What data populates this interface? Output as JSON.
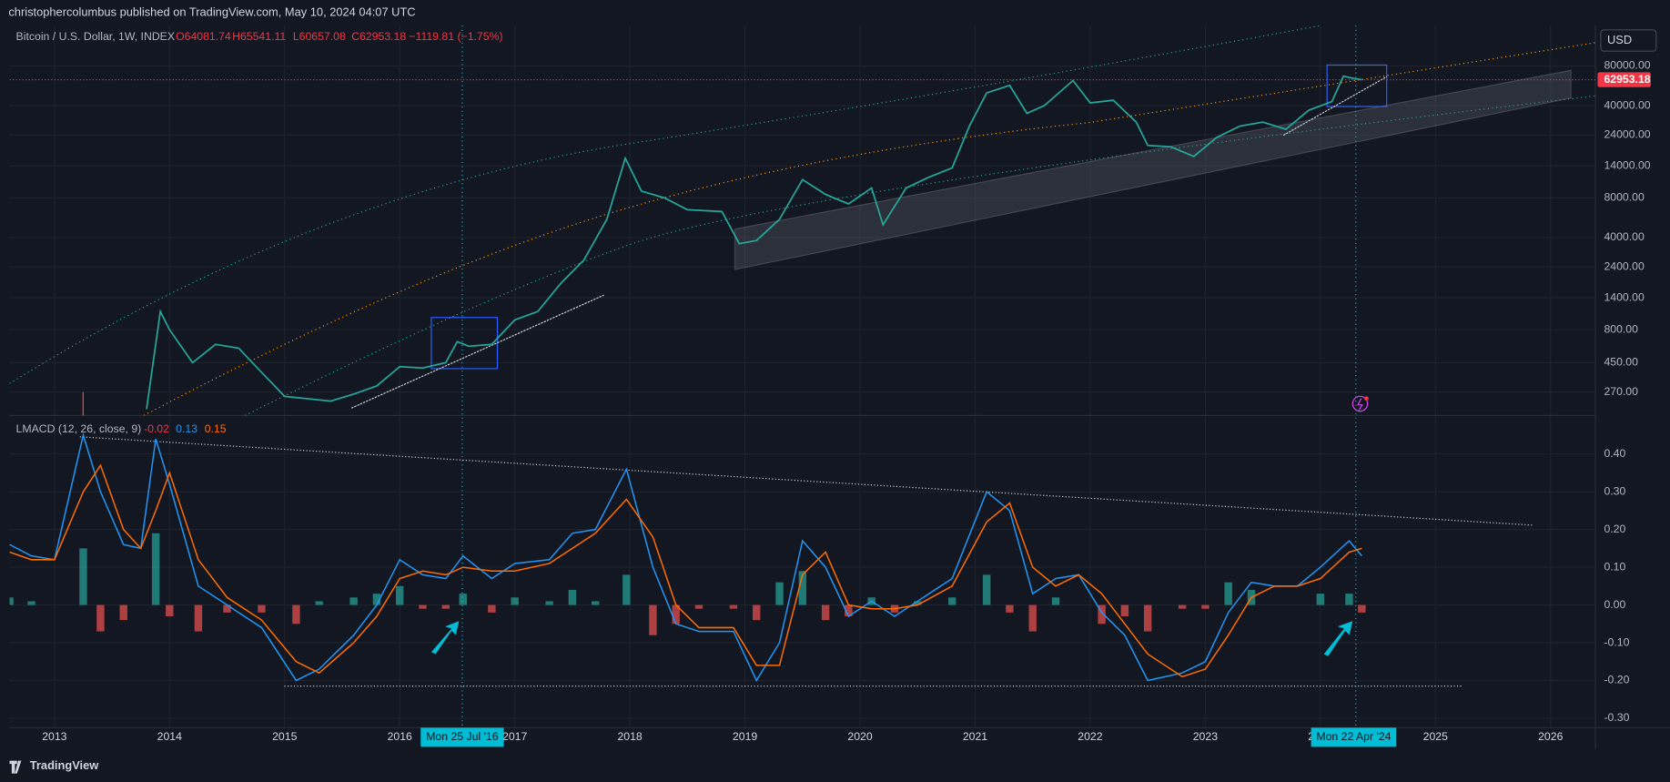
{
  "header": {
    "title": "christophercolumbus published on TradingView.com, May 10, 2024 04:07 UTC"
  },
  "footer": {
    "brand": "TradingView"
  },
  "currency": "USD",
  "crosshair_labels": [
    "Mon 25 Jul '16",
    "Mon 22 Apr '24"
  ],
  "chart_data": [
    {
      "type": "line",
      "legend": [
        "Bitcoin / U.S. Dollar, 1W, INDEX",
        "O64081.74",
        "H65541.11",
        "L60657.08",
        "C62953.18",
        "−1119.81 (−1.75%)"
      ],
      "log_scale": true,
      "color": "#26a69a",
      "last_price": 62953.18,
      "last_price_color": "#f23645",
      "x": [
        2013.8,
        2013.92,
        2014.0,
        2014.2,
        2014.4,
        2014.6,
        2014.8,
        2015.0,
        2015.2,
        2015.4,
        2015.6,
        2015.8,
        2016.0,
        2016.2,
        2016.4,
        2016.5,
        2016.6,
        2016.8,
        2017.0,
        2017.2,
        2017.4,
        2017.6,
        2017.8,
        2017.96,
        2018.1,
        2018.3,
        2018.5,
        2018.8,
        2018.95,
        2019.1,
        2019.3,
        2019.5,
        2019.7,
        2019.9,
        2020.1,
        2020.2,
        2020.4,
        2020.6,
        2020.8,
        2020.95,
        2021.1,
        2021.3,
        2021.45,
        2021.6,
        2021.85,
        2022.0,
        2022.2,
        2022.4,
        2022.5,
        2022.7,
        2022.9,
        2023.1,
        2023.3,
        2023.5,
        2023.7,
        2023.9,
        2024.1,
        2024.2,
        2024.3,
        2024.36
      ],
      "series": [
        {
          "color": "#26a69a",
          "values": [
            200,
            1100,
            800,
            450,
            620,
            580,
            380,
            250,
            240,
            230,
            260,
            300,
            420,
            410,
            450,
            650,
            600,
            620,
            950,
            1100,
            1800,
            2700,
            5500,
            16000,
            9000,
            8000,
            6500,
            6300,
            3600,
            3800,
            5500,
            11000,
            8500,
            7200,
            9500,
            5000,
            9500,
            11500,
            13500,
            28000,
            50000,
            57000,
            35000,
            40000,
            62000,
            42000,
            44000,
            30000,
            20000,
            19500,
            16500,
            23000,
            28000,
            30000,
            26500,
            37000,
            43000,
            67000,
            64000,
            62953.18
          ]
        }
      ],
      "xlim": [
        2012.61,
        2026.39
      ],
      "ylim": [
        179,
        162000
      ],
      "yticks": [
        {
          "value": 80000,
          "label": "80000.00"
        },
        {
          "value": 40000,
          "label": "40000.00"
        },
        {
          "value": 24000,
          "label": "24000.00"
        },
        {
          "value": 14000,
          "label": "14000.00"
        },
        {
          "value": 8000,
          "label": "8000.00"
        },
        {
          "value": 4000,
          "label": "4000.00"
        },
        {
          "value": 2400,
          "label": "2400.00"
        },
        {
          "value": 1400,
          "label": "1400.00"
        },
        {
          "value": 800,
          "label": "800.00"
        },
        {
          "value": 450,
          "label": "450.00"
        },
        {
          "value": 270,
          "label": "270.00"
        }
      ],
      "grid": true
    },
    {
      "type": "line",
      "legend": [
        "LMACD (12, 26, close, 9)",
        "-0.02",
        "0.13",
        "0.15"
      ],
      "x": [
        2012.61,
        2012.8,
        2013.0,
        2013.25,
        2013.4,
        2013.6,
        2013.75,
        2013.88,
        2014.0,
        2014.25,
        2014.5,
        2014.8,
        2015.1,
        2015.3,
        2015.6,
        2015.8,
        2016.0,
        2016.2,
        2016.4,
        2016.55,
        2016.8,
        2017.0,
        2017.3,
        2017.5,
        2017.7,
        2017.97,
        2018.2,
        2018.4,
        2018.6,
        2018.9,
        2019.1,
        2019.3,
        2019.5,
        2019.7,
        2019.9,
        2020.1,
        2020.3,
        2020.5,
        2020.8,
        2021.1,
        2021.3,
        2021.5,
        2021.7,
        2021.9,
        2022.1,
        2022.3,
        2022.5,
        2022.8,
        2023.0,
        2023.2,
        2023.4,
        2023.6,
        2023.8,
        2024.0,
        2024.25,
        2024.36
      ],
      "series": [
        {
          "style": "histogram",
          "color": "#26a69a",
          "negative_color": "#ef5350",
          "values": [
            0.02,
            0.01,
            0,
            0.15,
            -0.07,
            -0.04,
            0,
            0.19,
            -0.03,
            -0.07,
            -0.02,
            -0.02,
            -0.05,
            0.01,
            0.02,
            0.03,
            0.05,
            -0.01,
            -0.01,
            0.03,
            -0.02,
            0.02,
            0.01,
            0.04,
            0.01,
            0.08,
            -0.08,
            -0.05,
            -0.01,
            -0.01,
            -0.04,
            0.06,
            0.09,
            -0.04,
            -0.03,
            0.02,
            -0.02,
            0.01,
            0.02,
            0.08,
            -0.02,
            -0.07,
            0.02,
            0,
            -0.05,
            -0.03,
            -0.07,
            -0.01,
            -0.01,
            0.06,
            0.04,
            0,
            0,
            0.03,
            0.03,
            -0.02
          ]
        },
        {
          "style": "line",
          "color": "#2196f3",
          "values": [
            0.16,
            0.13,
            0.12,
            0.45,
            0.3,
            0.16,
            0.15,
            0.44,
            0.32,
            0.05,
            0.0,
            -0.06,
            -0.2,
            -0.17,
            -0.08,
            0.0,
            0.12,
            0.08,
            0.07,
            0.13,
            0.07,
            0.11,
            0.12,
            0.19,
            0.2,
            0.36,
            0.1,
            -0.05,
            -0.07,
            -0.07,
            -0.2,
            -0.1,
            0.17,
            0.1,
            -0.03,
            0.01,
            -0.03,
            0.01,
            0.07,
            0.3,
            0.25,
            0.03,
            0.07,
            0.08,
            -0.02,
            -0.08,
            -0.2,
            -0.18,
            -0.15,
            -0.02,
            0.06,
            0.05,
            0.05,
            0.1,
            0.17,
            0.13
          ]
        },
        {
          "style": "line",
          "color": "#ff6d00",
          "values": [
            0.14,
            0.12,
            0.12,
            0.3,
            0.37,
            0.2,
            0.15,
            0.25,
            0.35,
            0.12,
            0.02,
            -0.04,
            -0.15,
            -0.18,
            -0.1,
            -0.03,
            0.07,
            0.09,
            0.08,
            0.1,
            0.09,
            0.09,
            0.11,
            0.15,
            0.19,
            0.28,
            0.18,
            0.0,
            -0.06,
            -0.06,
            -0.16,
            -0.16,
            0.08,
            0.14,
            0.0,
            -0.01,
            -0.01,
            0.0,
            0.05,
            0.22,
            0.27,
            0.1,
            0.05,
            0.08,
            0.03,
            -0.05,
            -0.13,
            -0.19,
            -0.17,
            -0.08,
            0.02,
            0.05,
            0.05,
            0.07,
            0.14,
            0.15
          ]
        }
      ],
      "xlim": [
        2012.61,
        2026.39
      ],
      "ylim": [
        -0.325,
        0.502
      ],
      "yticks": [
        {
          "value": 0.4,
          "label": "0.40"
        },
        {
          "value": 0.3,
          "label": "0.30"
        },
        {
          "value": 0.2,
          "label": "0.20"
        },
        {
          "value": 0.1,
          "label": "0.10"
        },
        {
          "value": 0,
          "label": "0.00"
        },
        {
          "value": -0.1,
          "label": "-0.10"
        },
        {
          "value": -0.2,
          "label": "-0.20"
        },
        {
          "value": -0.3,
          "label": "-0.30"
        }
      ],
      "xticks": [
        2013,
        2014,
        2015,
        2016,
        2017,
        2018,
        2019,
        2020,
        2021,
        2022,
        2023,
        2024,
        2025,
        2026
      ],
      "grid": true
    }
  ]
}
